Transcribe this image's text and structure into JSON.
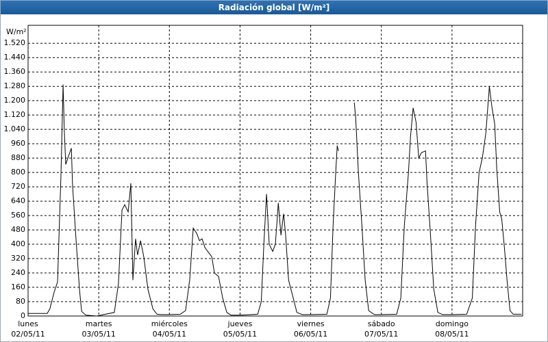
{
  "chart_data": {
    "type": "line",
    "title": "Radiación global [W/m²]",
    "y_label": "W/m²",
    "xlim": [
      0,
      168
    ],
    "ylim": [
      0,
      1620
    ],
    "xticks": [
      {
        "value": 0,
        "label": "lunes\n02/05/11"
      },
      {
        "value": 24,
        "label": "martes\n03/05/11"
      },
      {
        "value": 48,
        "label": "miércoles\n04/05/11"
      },
      {
        "value": 72,
        "label": "jueves\n05/05/11"
      },
      {
        "value": 96,
        "label": "viernes\n06/05/11"
      },
      {
        "value": 120,
        "label": "sábado\n07/05/11"
      },
      {
        "value": 144,
        "label": "domingo\n08/05/11"
      }
    ],
    "yticks": [
      0,
      80,
      160,
      240,
      320,
      400,
      {
        "value": 480,
        "label": "480"
      },
      560,
      640,
      720,
      800,
      880,
      960,
      {
        "value": 1040,
        "label": "1.040"
      },
      {
        "value": 1120,
        "label": "1.120"
      },
      {
        "value": 1200,
        "label": "1.200"
      },
      {
        "value": 1280,
        "label": "1.280"
      },
      {
        "value": 1360,
        "label": "1.360"
      },
      {
        "value": 1440,
        "label": "1.440"
      },
      {
        "value": 1520,
        "label": "1.520"
      }
    ],
    "grid": true,
    "series": [
      {
        "name": "Radiación global",
        "color": "#000000",
        "x": [
          0,
          6.5,
          7.4,
          8.8,
          10.0,
          11.2,
          11.9,
          12.3,
          12.8,
          13.5,
          14.7,
          15.1,
          16.3,
          17.5,
          18.2,
          19.6,
          23.3,
          29.3,
          30.7,
          31.9,
          32.8,
          34.0,
          34.9,
          35.6,
          36.5,
          37.2,
          38.2,
          39.3,
          40.7,
          42.4,
          43.8,
          45.4,
          47.7,
          51.7,
          53.5,
          54.9,
          56.1,
          57.3,
          58.2,
          59.1,
          60.1,
          61.5,
          62.4,
          63.3,
          64.7,
          66.1,
          67.5,
          68.9,
          72.1,
          78.0,
          79.2,
          80.1,
          81.0,
          81.9,
          83.1,
          84.0,
          85.0,
          85.9,
          86.8,
          87.5,
          88.5,
          89.9,
          91.3,
          93.1,
          96.0,
          101.5,
          102.7,
          103.6,
          104.5,
          105.0,
          105.4,
          108,
          110.8,
          111.3,
          112.2,
          113.4,
          114.5,
          115.7,
          117.6,
          119.9,
          125.2,
          126.6,
          127.8,
          129.2,
          129.9,
          130.8,
          131.8,
          132.7,
          133.6,
          135.0,
          135.5,
          136.7,
          137.8,
          139.2,
          140.8,
          143.9,
          149.0,
          150.9,
          152.0,
          153.2,
          154.3,
          155.5,
          156.7,
          157.6,
          158.5,
          159.2,
          160.2,
          160.9,
          161.8,
          162.7,
          163.7,
          164.8,
          167.6
        ],
        "values": [
          14,
          14,
          40,
          130,
          190,
          800,
          1290,
          1030,
          845,
          880,
          935,
          730,
          420,
          140,
          25,
          5,
          0,
          20,
          180,
          590,
          620,
          580,
          740,
          200,
          430,
          340,
          420,
          330,
          150,
          40,
          10,
          8,
          8,
          10,
          30,
          200,
          490,
          460,
          420,
          430,
          380,
          350,
          330,
          240,
          220,
          100,
          20,
          5,
          5,
          10,
          80,
          400,
          680,
          400,
          360,
          400,
          630,
          450,
          570,
          450,
          200,
          110,
          20,
          8,
          8,
          10,
          100,
          500,
          800,
          950,
          920,
          null,
          1190,
          1100,
          800,
          500,
          200,
          30,
          8,
          8,
          10,
          100,
          500,
          800,
          1000,
          1160,
          1080,
          880,
          910,
          920,
          750,
          450,
          150,
          20,
          8,
          8,
          10,
          100,
          500,
          800,
          880,
          1020,
          1280,
          1160,
          1070,
          820,
          580,
          540,
          380,
          200,
          30,
          10,
          10
        ]
      }
    ]
  }
}
